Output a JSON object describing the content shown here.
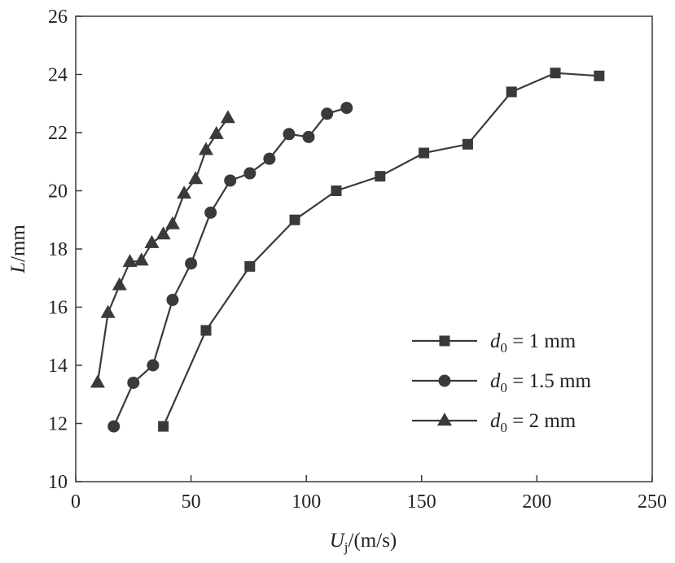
{
  "chart_data": {
    "type": "line",
    "xlabel_main": "U",
    "xlabel_sub": "j",
    "xlabel_unit": "/(m/s)",
    "ylabel_main": "L",
    "ylabel_unit": "/mm",
    "xlim": [
      0,
      250
    ],
    "ylim": [
      10,
      26
    ],
    "xticks": [
      "0",
      "50",
      "100",
      "150",
      "200",
      "250"
    ],
    "yticks": [
      "10",
      "12",
      "14",
      "16",
      "18",
      "20",
      "22",
      "24",
      "26"
    ],
    "grid": false,
    "legend_position": "bottom-right",
    "series": [
      {
        "name_prefix": "d",
        "name_sub": "0",
        "name_value": " = 1 mm",
        "marker": "square",
        "x": [
          38,
          56.5,
          75.5,
          95,
          113,
          132,
          151,
          170,
          189,
          208,
          227
        ],
        "y": [
          11.9,
          15.2,
          17.4,
          19.0,
          20.0,
          20.5,
          21.3,
          21.6,
          23.4,
          24.05,
          23.95
        ]
      },
      {
        "name_prefix": "d",
        "name_sub": "0",
        "name_value": " = 1.5 mm",
        "marker": "circle",
        "x": [
          16.5,
          25,
          33.5,
          42,
          50,
          58.5,
          67,
          75.5,
          84,
          92.5,
          101,
          109,
          117.5
        ],
        "y": [
          11.9,
          13.4,
          14.0,
          16.25,
          17.5,
          19.25,
          20.35,
          20.6,
          21.1,
          21.95,
          21.85,
          22.65,
          22.85
        ]
      },
      {
        "name_prefix": "d",
        "name_sub": "0",
        "name_value": " = 2 mm",
        "marker": "triangle",
        "x": [
          9.5,
          14,
          19,
          23.5,
          28.5,
          33,
          38,
          42,
          47,
          52,
          56.5,
          61,
          66
        ],
        "y": [
          13.4,
          15.8,
          16.75,
          17.55,
          17.6,
          18.2,
          18.5,
          18.85,
          19.9,
          20.4,
          21.4,
          21.95,
          22.5
        ]
      }
    ]
  }
}
